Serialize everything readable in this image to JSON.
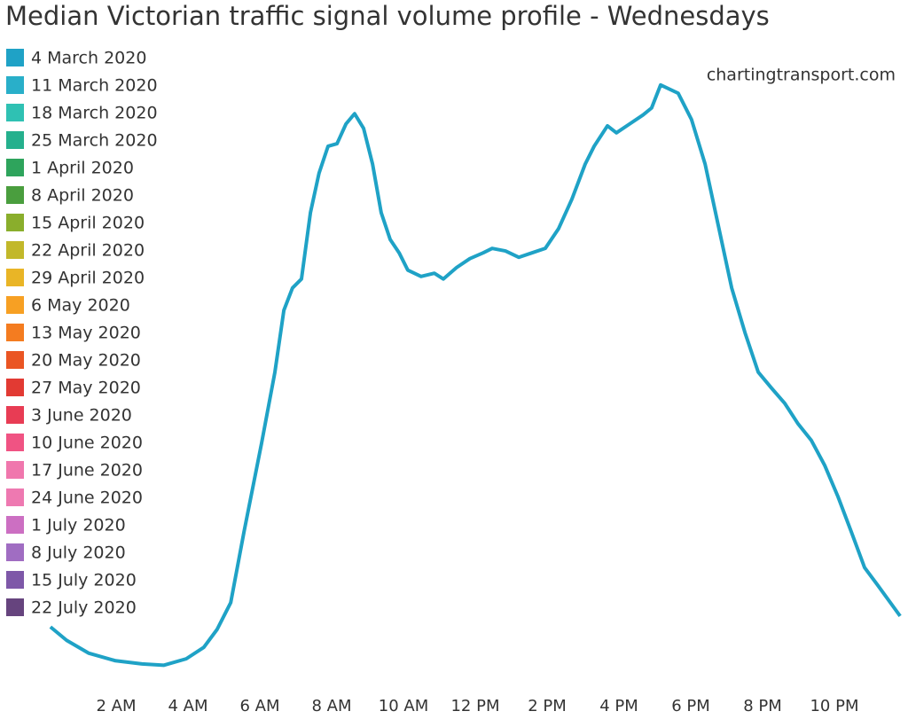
{
  "chart_data": {
    "type": "line",
    "title": "Median Victorian traffic signal volume profile - Wednesdays",
    "annotation": "chartingtransport.com",
    "xlim": [
      0,
      24
    ],
    "xticks": [
      {
        "value": 2,
        "label": "2 AM"
      },
      {
        "value": 4,
        "label": "4 AM"
      },
      {
        "value": 6,
        "label": "6 AM"
      },
      {
        "value": 8,
        "label": "8 AM"
      },
      {
        "value": 10,
        "label": "10 AM"
      },
      {
        "value": 12,
        "label": "12 PM"
      },
      {
        "value": 14,
        "label": "2 PM"
      },
      {
        "value": 16,
        "label": "4 PM"
      },
      {
        "value": 18,
        "label": "6 PM"
      },
      {
        "value": 20,
        "label": "8 PM"
      },
      {
        "value": 22,
        "label": "10 PM"
      }
    ],
    "ylim": [
      0,
      100
    ],
    "x": [
      0.17,
      0.62,
      1.23,
      1.98,
      2.72,
      3.33,
      3.95,
      4.44,
      4.81,
      5.19,
      5.56,
      6.05,
      6.42,
      6.67,
      6.91,
      7.16,
      7.41,
      7.65,
      7.9,
      8.15,
      8.4,
      8.64,
      8.89,
      9.14,
      9.38,
      9.63,
      9.88,
      10.12,
      10.49,
      10.86,
      11.11,
      11.48,
      11.85,
      12.22,
      12.47,
      12.84,
      13.21,
      13.58,
      13.95,
      14.32,
      14.69,
      15.06,
      15.31,
      15.68,
      15.93,
      16.3,
      16.67,
      16.91,
      17.16,
      17.65,
      18.02,
      18.4,
      18.77,
      19.14,
      19.51,
      19.88,
      20.25,
      20.62,
      20.99,
      21.36,
      21.73,
      22.1,
      22.47,
      22.84,
      23.21,
      23.83
    ],
    "series": [
      {
        "name": "4 March 2020",
        "color": "#1fa2c6",
        "values": [
          12.9,
          10.8,
          8.8,
          7.6,
          7.1,
          6.9,
          7.9,
          9.7,
          12.5,
          16.7,
          27.8,
          41.7,
          52.8,
          62.5,
          66.0,
          67.4,
          77.8,
          84.0,
          88.2,
          88.6,
          91.7,
          93.3,
          91.0,
          85.4,
          77.8,
          73.6,
          71.5,
          68.8,
          67.8,
          68.3,
          67.4,
          69.2,
          70.6,
          71.5,
          72.2,
          71.8,
          70.8,
          71.5,
          72.2,
          75.3,
          79.9,
          85.4,
          88.2,
          91.4,
          90.3,
          91.7,
          93.1,
          94.2,
          97.8,
          96.5,
          92.4,
          85.4,
          75.7,
          66.0,
          59.0,
          52.8,
          50.3,
          47.9,
          44.7,
          42.1,
          38.2,
          33.3,
          27.8,
          22.2,
          19.4,
          14.6
        ]
      },
      {
        "name": "11 March 2020",
        "color": "#29afc9"
      },
      {
        "name": "18 March 2020",
        "color": "#2fc1b3"
      },
      {
        "name": "25 March 2020",
        "color": "#25b08d"
      },
      {
        "name": "1 April 2020",
        "color": "#2ea45c"
      },
      {
        "name": "8 April 2020",
        "color": "#4a9e3e"
      },
      {
        "name": "15 April 2020",
        "color": "#8aae2c"
      },
      {
        "name": "22 April 2020",
        "color": "#c2b82a"
      },
      {
        "name": "29 April 2020",
        "color": "#e9b526"
      },
      {
        "name": "6 May 2020",
        "color": "#f7a023"
      },
      {
        "name": "13 May 2020",
        "color": "#f47c20"
      },
      {
        "name": "20 May 2020",
        "color": "#ea5523"
      },
      {
        "name": "27 May 2020",
        "color": "#e23a33"
      },
      {
        "name": "3 June 2020",
        "color": "#e83c54"
      },
      {
        "name": "10 June 2020",
        "color": "#f05383"
      },
      {
        "name": "17 June 2020",
        "color": "#f077ad"
      },
      {
        "name": "24 June 2020",
        "color": "#ee79b1"
      },
      {
        "name": "1 July 2020",
        "color": "#cc6fc2"
      },
      {
        "name": "8 July 2020",
        "color": "#a06dc2"
      },
      {
        "name": "15 July 2020",
        "color": "#7e58a8"
      },
      {
        "name": "22 July 2020",
        "color": "#66447e"
      }
    ]
  }
}
